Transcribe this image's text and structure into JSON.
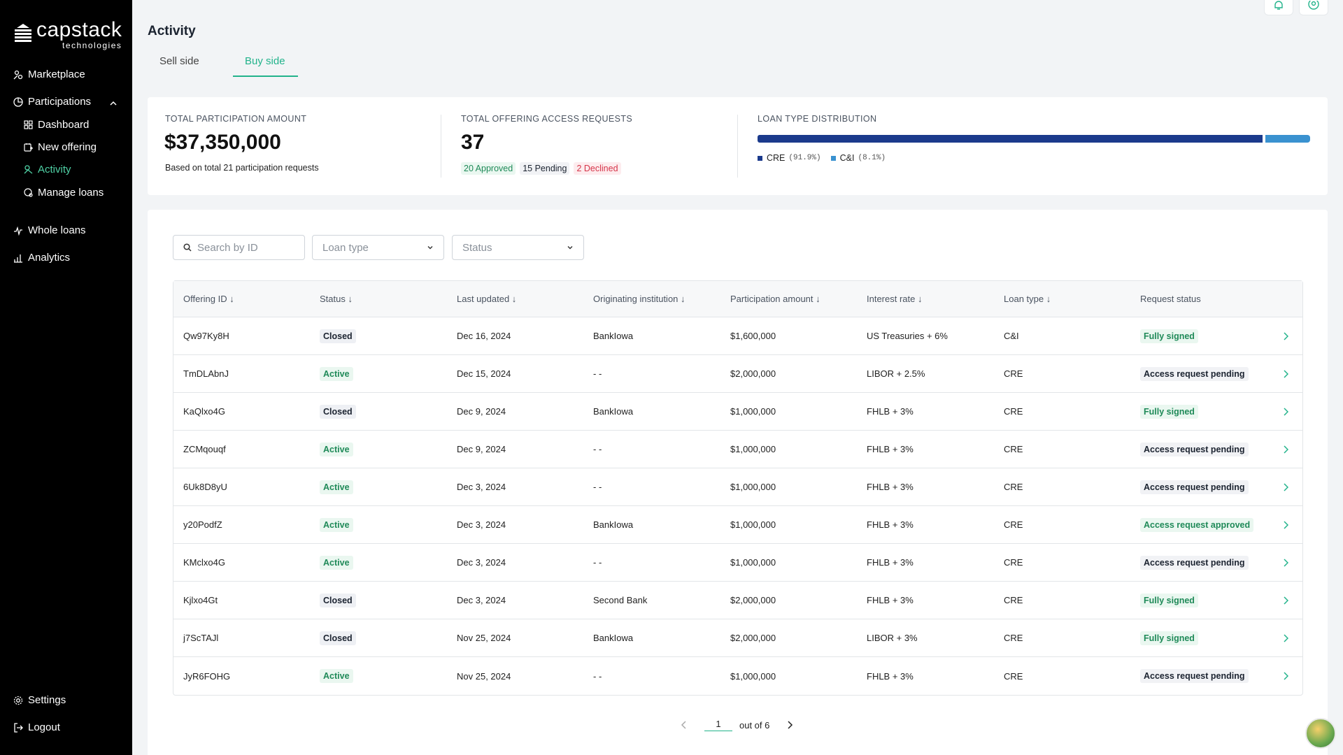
{
  "brand": {
    "name": "capstack",
    "subtitle": "technologies"
  },
  "sidebar": {
    "marketplace": "Marketplace",
    "participations": "Participations",
    "dashboard": "Dashboard",
    "new_offering": "New offering",
    "activity": "Activity",
    "manage_loans": "Manage loans",
    "whole_loans": "Whole loans",
    "analytics": "Analytics",
    "settings": "Settings",
    "logout": "Logout"
  },
  "page": {
    "title": "Activity",
    "tabs": [
      "Sell side",
      "Buy side"
    ],
    "active_tab": "Buy side"
  },
  "stats": {
    "participation_label": "TOTAL PARTICIPATION AMOUNT",
    "participation_value": "$37,350,000",
    "participation_note": "Based on total 21 participation requests",
    "requests_label": "TOTAL OFFERING ACCESS REQUESTS",
    "requests_value": "37",
    "approved": "20 Approved",
    "pending": "15 Pending",
    "declined": "2 Declined",
    "distribution_label": "LOAN TYPE DISTRIBUTION",
    "distribution": [
      {
        "name": "CRE",
        "pct_label": "(91.9%)",
        "fraction": 0.919,
        "color": "#1b3a8c"
      },
      {
        "name": "C&I",
        "pct_label": "(8.1%)",
        "fraction": 0.081,
        "color": "#3a92d0"
      }
    ]
  },
  "filters": {
    "search_placeholder": "Search by ID",
    "loan_type": "Loan type",
    "status": "Status"
  },
  "table": {
    "headers": [
      "Offering ID ↓",
      "Status ↓",
      "Last updated ↓",
      "Originating institution ↓",
      "Participation amount ↓",
      "Interest rate ↓",
      "Loan type ↓",
      "Request status"
    ],
    "rows": [
      {
        "id": "Qw97Ky8H",
        "status": "Closed",
        "updated": "Dec 16, 2024",
        "institution": "BankIowa",
        "amount": "$1,600,000",
        "rate": "US Treasuries + 6%",
        "type": "C&I",
        "request": "Fully signed"
      },
      {
        "id": "TmDLAbnJ",
        "status": "Active",
        "updated": "Dec 15, 2024",
        "institution": "- -",
        "amount": "$2,000,000",
        "rate": "LIBOR + 2.5%",
        "type": "CRE",
        "request": "Access request pending"
      },
      {
        "id": "KaQlxo4G",
        "status": "Closed",
        "updated": "Dec 9, 2024",
        "institution": "BankIowa",
        "amount": "$1,000,000",
        "rate": "FHLB + 3%",
        "type": "CRE",
        "request": "Fully signed"
      },
      {
        "id": "ZCMqouqf",
        "status": "Active",
        "updated": "Dec 9, 2024",
        "institution": "- -",
        "amount": "$1,000,000",
        "rate": "FHLB + 3%",
        "type": "CRE",
        "request": "Access request pending"
      },
      {
        "id": "6Uk8D8yU",
        "status": "Active",
        "updated": "Dec 3, 2024",
        "institution": "- -",
        "amount": "$1,000,000",
        "rate": "FHLB + 3%",
        "type": "CRE",
        "request": "Access request pending"
      },
      {
        "id": "y20PodfZ",
        "status": "Active",
        "updated": "Dec 3, 2024",
        "institution": "BankIowa",
        "amount": "$1,000,000",
        "rate": "FHLB + 3%",
        "type": "CRE",
        "request": "Access request approved"
      },
      {
        "id": "KMclxo4G",
        "status": "Active",
        "updated": "Dec 3, 2024",
        "institution": "- -",
        "amount": "$1,000,000",
        "rate": "FHLB + 3%",
        "type": "CRE",
        "request": "Access request pending"
      },
      {
        "id": "Kjlxo4Gt",
        "status": "Closed",
        "updated": "Dec 3, 2024",
        "institution": "Second Bank",
        "amount": "$2,000,000",
        "rate": "FHLB + 3%",
        "type": "CRE",
        "request": "Fully signed"
      },
      {
        "id": "j7ScTAJl",
        "status": "Closed",
        "updated": "Nov 25, 2024",
        "institution": "BankIowa",
        "amount": "$2,000,000",
        "rate": "LIBOR + 3%",
        "type": "CRE",
        "request": "Fully signed"
      },
      {
        "id": "JyR6FOHG",
        "status": "Active",
        "updated": "Nov 25, 2024",
        "institution": "- -",
        "amount": "$1,000,000",
        "rate": "FHLB + 3%",
        "type": "CRE",
        "request": "Access request pending"
      }
    ]
  },
  "pagination": {
    "current": "1",
    "total_label": "out of 6"
  }
}
